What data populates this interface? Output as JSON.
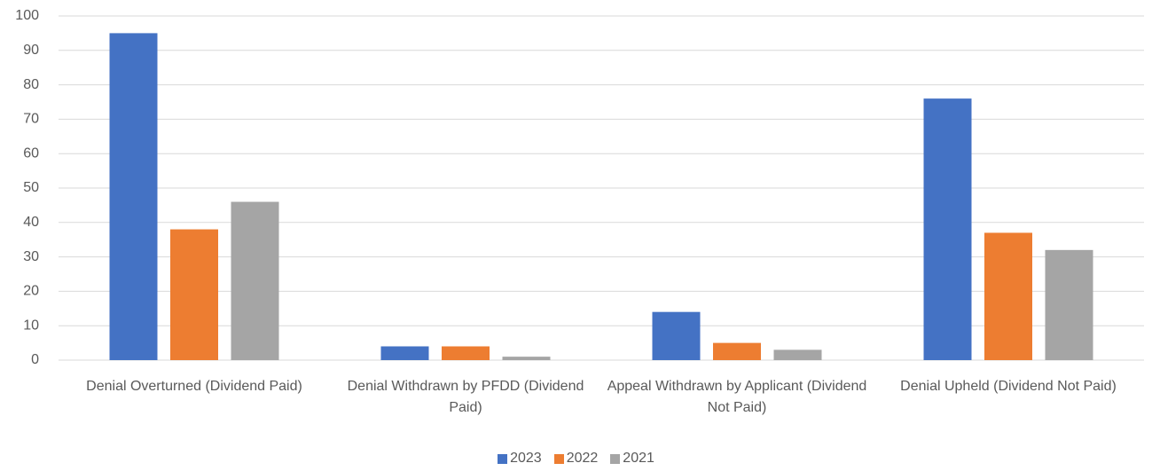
{
  "chart_data": {
    "type": "bar",
    "categories": [
      "Denial Overturned (Dividend Paid)",
      "Denial Withdrawn by PFDD (Dividend Paid)",
      "Appeal Withdrawn by Applicant (Dividend Not Paid)",
      "Denial Upheld (Dividend Not Paid)"
    ],
    "series": [
      {
        "name": "2023",
        "color": "#4472c4",
        "values": [
          95,
          4,
          14,
          76
        ]
      },
      {
        "name": "2022",
        "color": "#ed7d31",
        "values": [
          38,
          4,
          5,
          37
        ]
      },
      {
        "name": "2021",
        "color": "#a5a5a5",
        "values": [
          46,
          1,
          3,
          32
        ]
      }
    ],
    "ylim": [
      0,
      100
    ],
    "yticks": [
      0,
      10,
      20,
      30,
      40,
      50,
      60,
      70,
      80,
      90,
      100
    ],
    "grid": true,
    "legend": "bottom"
  }
}
